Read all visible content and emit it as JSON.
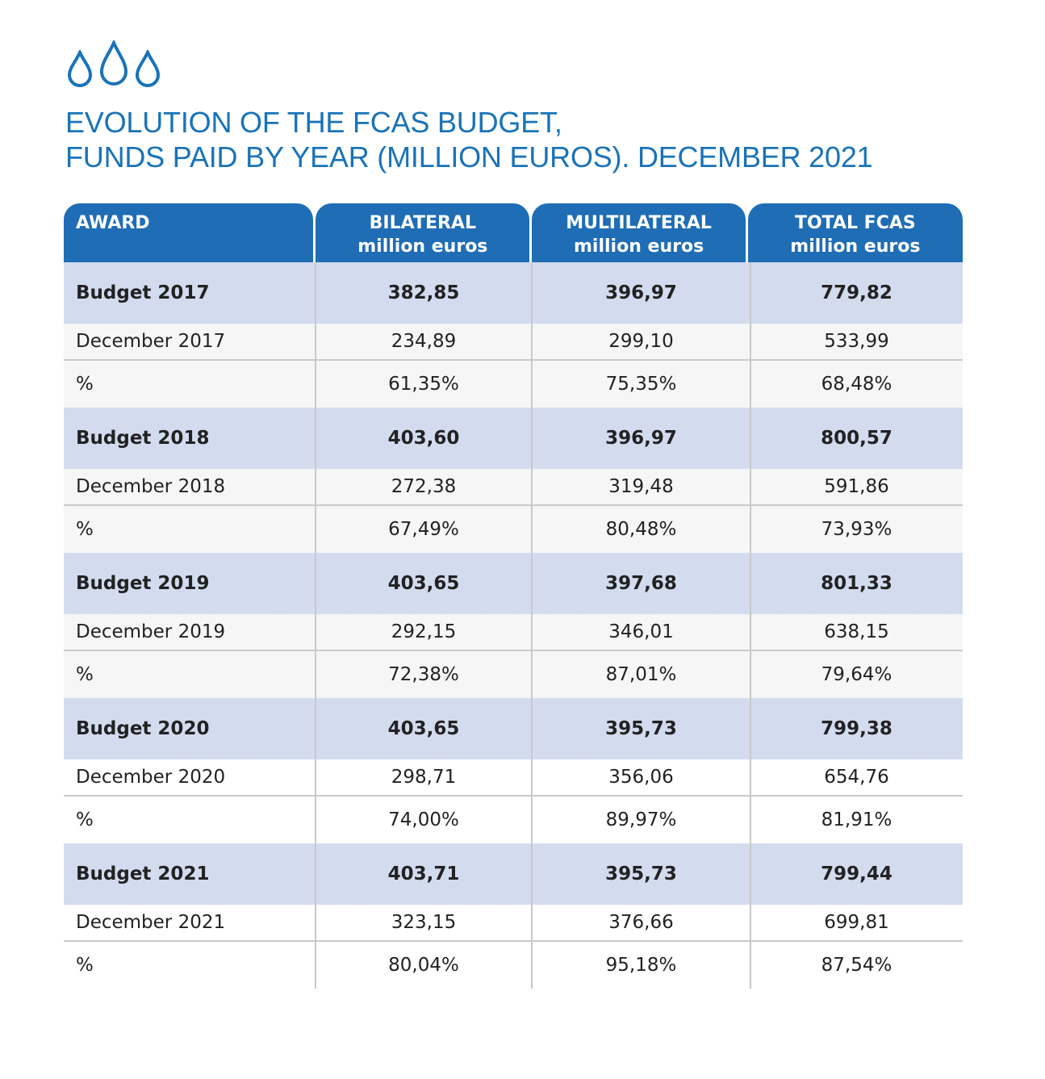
{
  "title": {
    "line1": "EVOLUTION OF THE FCAS BUDGET,",
    "line2": "FUNDS PAID BY YEAR (MILLION EUROS). DECEMBER 2021"
  },
  "colors": {
    "accent": "#1a73b8",
    "header_bg": "#1f6db5",
    "budget_row_bg": "#d3dcef"
  },
  "icons": [
    "water-drop-icon",
    "water-drop-icon",
    "water-drop-icon"
  ],
  "table": {
    "headers": [
      {
        "line1": "AWARD",
        "line2": ""
      },
      {
        "line1": "BILATERAL",
        "line2": "million euros"
      },
      {
        "line1": "MULTILATERAL",
        "line2": "million euros"
      },
      {
        "line1": "TOTAL FCAS",
        "line2": "million euros"
      }
    ],
    "rows": [
      {
        "type": "budget",
        "cells": [
          "Budget 2017",
          "382,85",
          "396,97",
          "779,82"
        ]
      },
      {
        "type": "dec",
        "cells": [
          "December 2017",
          "234,89",
          "299,10",
          "533,99"
        ]
      },
      {
        "type": "pct",
        "cells": [
          "%",
          "61,35%",
          "75,35%",
          "68,48%"
        ]
      },
      {
        "type": "budget",
        "cells": [
          "Budget 2018",
          "403,60",
          "396,97",
          "800,57"
        ]
      },
      {
        "type": "dec",
        "cells": [
          "December 2018",
          "272,38",
          "319,48",
          "591,86"
        ]
      },
      {
        "type": "pct",
        "cells": [
          "%",
          "67,49%",
          "80,48%",
          "73,93%"
        ]
      },
      {
        "type": "budget",
        "cells": [
          "Budget 2019",
          "403,65",
          "397,68",
          "801,33"
        ]
      },
      {
        "type": "dec",
        "cells": [
          "December 2019",
          "292,15",
          "346,01",
          "638,15"
        ]
      },
      {
        "type": "pct",
        "cells": [
          "%",
          "72,38%",
          "87,01%",
          "79,64%"
        ]
      },
      {
        "type": "budget",
        "cells": [
          "Budget 2020",
          "403,65",
          "395,73",
          "799,38"
        ]
      },
      {
        "type": "dec",
        "cells": [
          "December 2020",
          "298,71",
          "356,06",
          "654,76"
        ]
      },
      {
        "type": "pct",
        "cells": [
          "%",
          "74,00%",
          "89,97%",
          "81,91%"
        ]
      },
      {
        "type": "budget",
        "cells": [
          "Budget 2021",
          "403,71",
          "395,73",
          "799,44"
        ]
      },
      {
        "type": "dec",
        "cells": [
          "December 2021",
          "323,15",
          "376,66",
          "699,81"
        ]
      },
      {
        "type": "pct",
        "cells": [
          "%",
          "80,04%",
          "95,18%",
          "87,54%"
        ]
      }
    ]
  }
}
